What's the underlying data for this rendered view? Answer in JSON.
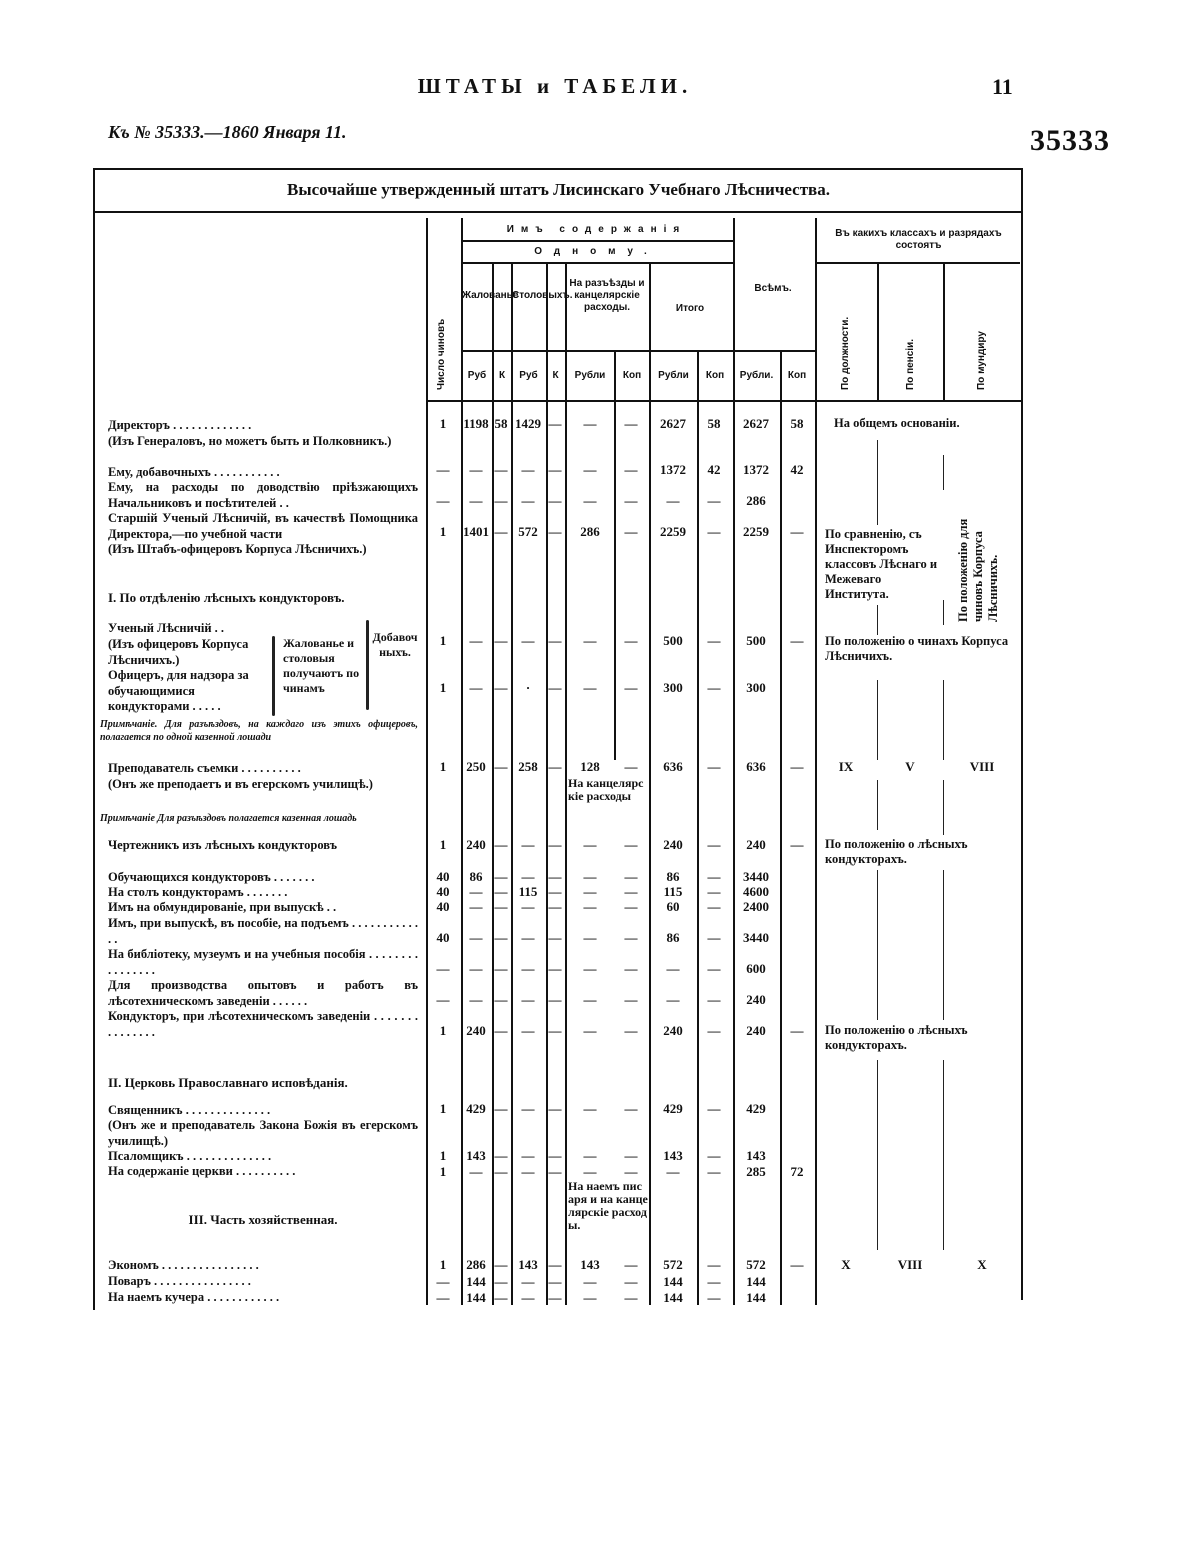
{
  "page_header": {
    "running_title": "ШТАТЫ и ТАБЕЛИ.",
    "page_number": "11",
    "reference": "Къ № 35333.—1860 Января 11.",
    "law_number": "35333"
  },
  "table": {
    "title": "Высочайше утвержденный штатъ Лисинскаго Учебнаго Лѣсничества.",
    "headers": {
      "count": "Число чиновъ",
      "salary_group": "Имъ содержанія",
      "per_one": "Одному.",
      "salary": "Жалованье",
      "table_money": "Столовыхъ.",
      "travel": "На разъѣзды и канцелярскіе расходы.",
      "subtotal": "Итого",
      "total": "Всѣмъ.",
      "classes_group": "Въ какихъ классахъ и разрядахъ состоятъ",
      "by_position": "По должности.",
      "by_pension": "По пенсіи.",
      "by_uniform": "По мундиру",
      "rub_short": "Руб",
      "kop_short": "К",
      "rubles": "Рубли",
      "kop": "Коп",
      "rubles2": "Рубли",
      "rubles3": "Рубли."
    },
    "left_text": [
      "Директоръ . . . . . . . . . . . . .",
      "(Изъ Генераловъ, но можетъ быть и Полковникъ.)",
      "Ему, добавочныхъ . . . . . . . . . . .",
      "Ему, на расходы по доводствію пріѣзжающихъ Начальниковъ и посѣтителей . .",
      "Старшій Ученый Лѣсничій, въ качествѣ Помощника Директора,—по учебной части",
      "(Изъ Штабъ-офицеровъ Корпуса Лѣсничихъ.)",
      "I. По отдѣленію лѣсныхъ кондукторовъ.",
      "Ученый Лѣсничій . .",
      "(Изъ офицеровъ Корпуса Лѣсничихъ.)",
      "Офицеръ, для надзора за обучающимися кондукторами . . . . .",
      "Примѣчаніе. Для разъѣздовъ, на каждаго изъ этихъ офицеровъ, полагается по одной казенной лошади",
      "Преподаватель съемки . . . . . . . . . .",
      "(Онъ же преподаетъ и въ егерскомъ училищѣ.)",
      "Примѣчаніе Для разъѣздовъ полагается казенная лошадь",
      "Чертежникъ изъ лѣсныхъ кондукторовъ",
      "Обучающихся кондукторовъ . . . . . . .",
      "На столъ кондукторамъ . . . . . . .",
      "Имъ на обмундированіе, при выпускѣ . .",
      "Имъ, при выпускѣ, въ пособіе, на подъемъ . . . . . . . . . . . . .",
      "На библіотеку, музеумъ и на учебныя пособія . . . . . . . . . . . . . . . .",
      "Для производства опытовъ и работъ въ лѣсотехническомъ заведеніи . . . . . .",
      "Кондукторъ, при лѣсотехническомъ заведеніи . . . . . . . . . . . . . . .",
      "II. Церковь Православнаго исповѣданія.",
      "Священникъ . . . . . . . . . . . . . .",
      "(Онъ же и преподаватель Закона Божія въ егерскомъ училищѣ.)",
      "Псаломщикъ . . . . . . . . . . . . . .",
      "На содержаніе церкви . . . . . . . . . .",
      "III. Часть хозяйственная.",
      "Экономъ . . . . . . . . . . . . . . . .",
      "Поваръ . . . . . . . . . . . . . . . .",
      "На наемъ кучера . . . . . . . . . . . ."
    ],
    "bracket_text": {
      "salary_note": "Жалованье и столовыя получаютъ по чинамъ",
      "extra_note": "Добавочныхъ."
    },
    "rows": [
      [
        "1",
        "1198",
        "58",
        "1429",
        "—",
        "—",
        "—",
        "2627",
        "58",
        "2627",
        "58"
      ],
      [
        "—",
        "—",
        "—",
        "—",
        "—",
        "—",
        "—",
        "1372",
        "42",
        "1372",
        "42"
      ],
      [
        "—",
        "—",
        "—",
        "—",
        "—",
        "—",
        "—",
        "—",
        "—",
        "286",
        ""
      ],
      [
        "1",
        "1401",
        "—",
        "572",
        "—",
        "286",
        "—",
        "2259",
        "—",
        "2259",
        "—"
      ],
      [
        "1",
        "—",
        "—",
        "—",
        "—",
        "—",
        "—",
        "500",
        "—",
        "500",
        "—"
      ],
      [
        "1",
        "—",
        "—",
        "·",
        "—",
        "—",
        "—",
        "300",
        "—",
        "300",
        ""
      ],
      [
        "1",
        "250",
        "—",
        "258",
        "—",
        "128",
        "—",
        "636",
        "—",
        "636",
        "—"
      ],
      [
        "1",
        "240",
        "—",
        "—",
        "—",
        "—",
        "—",
        "240",
        "—",
        "240",
        "—"
      ],
      [
        "40",
        "86",
        "—",
        "—",
        "—",
        "—",
        "—",
        "86",
        "—",
        "3440",
        ""
      ],
      [
        "40",
        "—",
        "—",
        "115",
        "—",
        "—",
        "—",
        "115",
        "—",
        "4600",
        ""
      ],
      [
        "40",
        "—",
        "—",
        "—",
        "—",
        "—",
        "—",
        "60",
        "—",
        "2400",
        ""
      ],
      [
        "40",
        "—",
        "—",
        "—",
        "—",
        "—",
        "—",
        "86",
        "—",
        "3440",
        ""
      ],
      [
        "—",
        "—",
        "—",
        "—",
        "—",
        "—",
        "—",
        "—",
        "—",
        "600",
        ""
      ],
      [
        "—",
        "—",
        "—",
        "—",
        "—",
        "—",
        "—",
        "—",
        "—",
        "240",
        ""
      ],
      [
        "1",
        "240",
        "—",
        "—",
        "—",
        "—",
        "—",
        "240",
        "—",
        "240",
        "—"
      ],
      [
        "1",
        "429",
        "—",
        "—",
        "—",
        "—",
        "—",
        "429",
        "—",
        "429",
        ""
      ],
      [
        "1",
        "143",
        "—",
        "—",
        "—",
        "—",
        "—",
        "143",
        "—",
        "143",
        ""
      ],
      [
        "1",
        "—",
        "—",
        "—",
        "—",
        "—",
        "—",
        "—",
        "—",
        "285",
        "72"
      ],
      [
        "1",
        "286",
        "—",
        "143",
        "—",
        "143",
        "—",
        "572",
        "—",
        "572",
        "—"
      ],
      [
        "—",
        "144",
        "—",
        "—",
        "—",
        "—",
        "—",
        "144",
        "—",
        "144",
        ""
      ],
      [
        "—",
        "144",
        "—",
        "—",
        "—",
        "—",
        "—",
        "144",
        "—",
        "144",
        ""
      ]
    ],
    "travel_notes": [
      "На канцелярскіе расходы",
      "На наемъ писаря и на канцелярскіе расходы."
    ],
    "class_notes": {
      "general": "На общемъ основаніи.",
      "comparison": "По сравненію, съ Инспекторомъ классовъ Лѣснаго и Межеваго Института.",
      "corps_uniform": "По положенію для чиновъ Корпуса Лѣсничихъ.",
      "corps_ranks": "По положенію о чинахъ Корпуса Лѣсничихъ.",
      "conductors_1": "По положенію о лѣсныхъ кондукторахъ.",
      "conductors_2": "По положенію о лѣсныхъ кондукторахъ.",
      "teacher": [
        "IX",
        "V",
        "VIII"
      ],
      "econom": [
        "X",
        "VIII",
        "X"
      ]
    }
  }
}
